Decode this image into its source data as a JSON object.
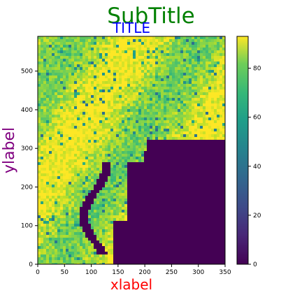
{
  "chart_data": {
    "type": "heatmap",
    "subtitle": "SubTitle",
    "title": "TITLE",
    "xlabel": "xlabel",
    "ylabel": "ylabel",
    "xlim": [
      0,
      350
    ],
    "ylim": [
      0,
      590
    ],
    "x_ticks": [
      "0",
      "50",
      "100",
      "150",
      "200",
      "250",
      "300",
      "350"
    ],
    "y_ticks": [
      "0",
      "100",
      "200",
      "300",
      "400",
      "500"
    ],
    "colorbar": {
      "colormap": "viridis",
      "range": [
        0,
        93
      ],
      "ticks": [
        "0",
        "20",
        "40",
        "60",
        "80"
      ]
    },
    "colors": {
      "subtitle": "#008000",
      "title": "#0000ff",
      "xlabel": "#ff0000",
      "ylabel": "#800080"
    }
  }
}
